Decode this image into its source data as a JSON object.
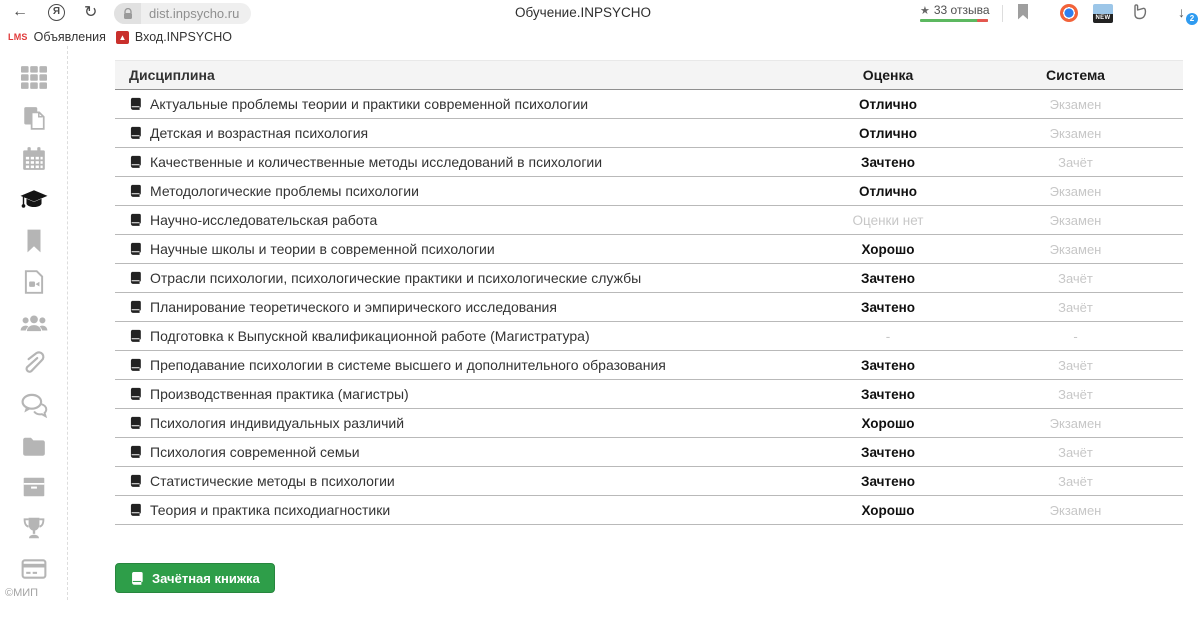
{
  "browser": {
    "url": "dist.inpsycho.ru",
    "page_title": "Обучение.INPSYCHO",
    "reviews_label": "33 отзыва",
    "downloads_badge": "2",
    "new_badge": "NEW"
  },
  "bookmarks_bar": {
    "items": [
      {
        "favicon": "lms-logo",
        "favicon_text": "LMS",
        "label": "Объявления"
      },
      {
        "favicon": "mip-logo",
        "favicon_text": "▲",
        "label": "Вход.INPSYCHO"
      }
    ]
  },
  "sidebar": {
    "items": [
      {
        "icon": "grid-icon",
        "active": false
      },
      {
        "icon": "pages-icon",
        "active": false
      },
      {
        "icon": "calendar-icon",
        "active": false
      },
      {
        "icon": "graduation-cap-icon",
        "active": true
      },
      {
        "icon": "bookmark-icon",
        "active": false
      },
      {
        "icon": "video-file-icon",
        "active": false
      },
      {
        "icon": "users-icon",
        "active": false
      },
      {
        "icon": "paperclip-icon",
        "active": false
      },
      {
        "icon": "chat-icon",
        "active": false
      },
      {
        "icon": "folder-icon",
        "active": false
      },
      {
        "icon": "archive-icon",
        "active": false
      },
      {
        "icon": "trophy-icon",
        "active": false
      },
      {
        "icon": "credit-card-icon",
        "active": false
      }
    ],
    "footer_text": "©МИП"
  },
  "table": {
    "headers": {
      "discipline": "Дисциплина",
      "grade": "Оценка",
      "system": "Система"
    },
    "rows": [
      {
        "discipline": "Актуальные проблемы теории и практики современной психологии",
        "grade": "Отлично",
        "grade_muted": false,
        "system": "Экзамен"
      },
      {
        "discipline": "Детская и возрастная психология",
        "grade": "Отлично",
        "grade_muted": false,
        "system": "Экзамен"
      },
      {
        "discipline": "Качественные и количественные методы исследований в психологии",
        "grade": "Зачтено",
        "grade_muted": false,
        "system": "Зачёт"
      },
      {
        "discipline": "Методологические проблемы психологии",
        "grade": "Отлично",
        "grade_muted": false,
        "system": "Экзамен"
      },
      {
        "discipline": "Научно-исследовательская работа",
        "grade": "Оценки нет",
        "grade_muted": true,
        "system": "Экзамен"
      },
      {
        "discipline": "Научные школы и теории в современной психологии",
        "grade": "Хорошо",
        "grade_muted": false,
        "system": "Экзамен"
      },
      {
        "discipline": "Отрасли психологии, психологические практики и психологические службы",
        "grade": "Зачтено",
        "grade_muted": false,
        "system": "Зачёт"
      },
      {
        "discipline": "Планирование теоретического и эмпирического исследования",
        "grade": "Зачтено",
        "grade_muted": false,
        "system": "Зачёт"
      },
      {
        "discipline": "Подготовка к Выпускной квалификационной работе (Магистратура)",
        "grade": "-",
        "grade_muted": true,
        "system": "-"
      },
      {
        "discipline": "Преподавание психологии в системе высшего и дополнительного образования",
        "grade": "Зачтено",
        "grade_muted": false,
        "system": "Зачёт"
      },
      {
        "discipline": "Производственная практика (магистры)",
        "grade": "Зачтено",
        "grade_muted": false,
        "system": "Зачёт"
      },
      {
        "discipline": "Психология индивидуальных различий",
        "grade": "Хорошо",
        "grade_muted": false,
        "system": "Экзамен"
      },
      {
        "discipline": "Психология современной семьи",
        "grade": "Зачтено",
        "grade_muted": false,
        "system": "Зачёт"
      },
      {
        "discipline": "Статистические методы в психологии",
        "grade": "Зачтено",
        "grade_muted": false,
        "system": "Зачёт"
      },
      {
        "discipline": "Теория и практика психодиагностики",
        "grade": "Хорошо",
        "grade_muted": false,
        "system": "Экзамен"
      }
    ]
  },
  "actions": {
    "gradebook_button": "Зачётная книжка"
  },
  "colors": {
    "accent_green": "#2e9e49",
    "alert_red": "#d40d0d",
    "brand_red": "#e03a3a",
    "reviews_green": "#5cb860",
    "reviews_red": "#e4574f",
    "muted_text": "#c7c7c7"
  }
}
